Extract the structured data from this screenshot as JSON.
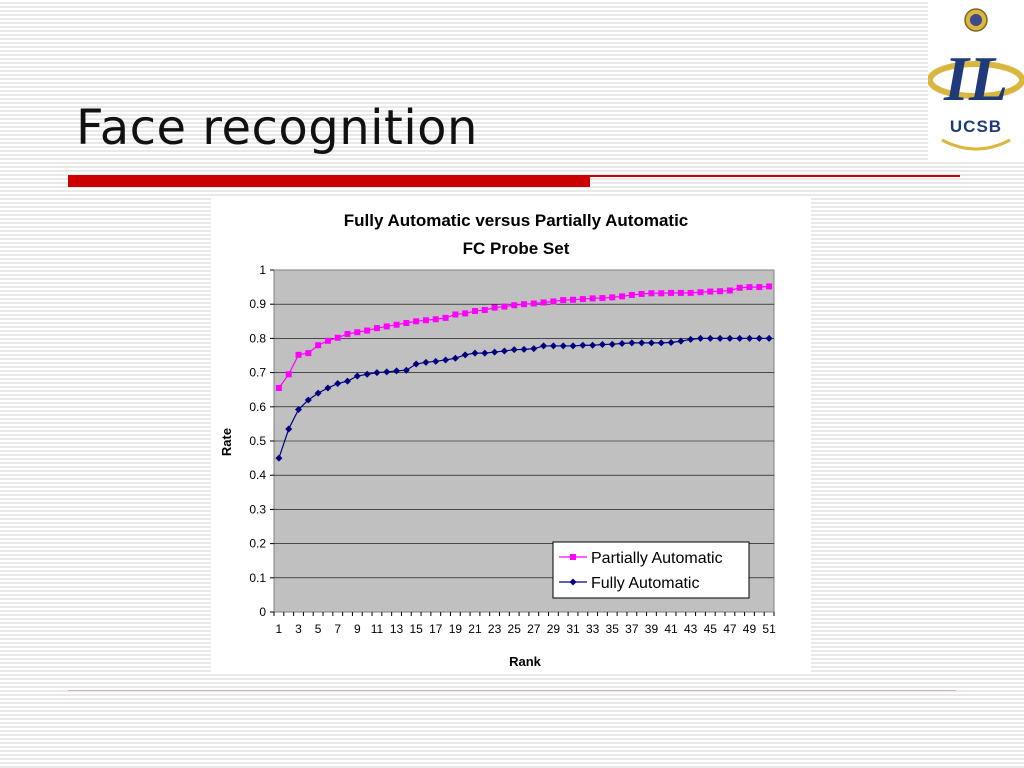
{
  "slide": {
    "title": "Face recognition",
    "logo_text": "UCSB",
    "logo_initials": "IL"
  },
  "colors": {
    "accent_red": "#cc0000",
    "plot_bg": "#c0c0c0",
    "partial": "#ff00ff",
    "fully": "#000080"
  },
  "chart_data": {
    "type": "line",
    "title": "Fully Automatic versus Partially Automatic",
    "subtitle": "FC Probe Set",
    "xlabel": "Rank",
    "ylabel": "Rate",
    "ylim": [
      0,
      1
    ],
    "yticks": [
      "0",
      "0.1",
      "0.2",
      "0.3",
      "0.4",
      "0.5",
      "0.6",
      "0.7",
      "0.8",
      "0.9",
      "1"
    ],
    "x": [
      1,
      2,
      3,
      4,
      5,
      6,
      7,
      8,
      9,
      10,
      11,
      12,
      13,
      14,
      15,
      16,
      17,
      18,
      19,
      20,
      21,
      22,
      23,
      24,
      25,
      26,
      27,
      28,
      29,
      30,
      31,
      32,
      33,
      34,
      35,
      36,
      37,
      38,
      39,
      40,
      41,
      42,
      43,
      44,
      45,
      46,
      47,
      48,
      49,
      50,
      51
    ],
    "xtick_labels": [
      1,
      3,
      5,
      7,
      9,
      11,
      13,
      15,
      17,
      19,
      21,
      23,
      25,
      27,
      29,
      31,
      33,
      35,
      37,
      39,
      41,
      43,
      45,
      47,
      49,
      51
    ],
    "grid": "horizontal",
    "legend_position": "bottom-right",
    "series": [
      {
        "name": "Partially Automatic",
        "color": "#ff00ff",
        "marker": "square",
        "values": [
          0.655,
          0.695,
          0.752,
          0.757,
          0.78,
          0.793,
          0.802,
          0.813,
          0.818,
          0.823,
          0.83,
          0.835,
          0.84,
          0.845,
          0.85,
          0.853,
          0.856,
          0.86,
          0.87,
          0.873,
          0.88,
          0.883,
          0.89,
          0.893,
          0.897,
          0.9,
          0.902,
          0.905,
          0.908,
          0.912,
          0.913,
          0.915,
          0.917,
          0.918,
          0.92,
          0.923,
          0.927,
          0.93,
          0.932,
          0.932,
          0.933,
          0.933,
          0.933,
          0.935,
          0.937,
          0.938,
          0.94,
          0.948,
          0.95,
          0.95,
          0.952
        ]
      },
      {
        "name": "Fully Automatic",
        "color": "#000080",
        "marker": "diamond",
        "values": [
          0.45,
          0.535,
          0.592,
          0.62,
          0.64,
          0.655,
          0.668,
          0.675,
          0.69,
          0.695,
          0.7,
          0.702,
          0.705,
          0.707,
          0.725,
          0.73,
          0.733,
          0.737,
          0.742,
          0.752,
          0.757,
          0.757,
          0.76,
          0.763,
          0.767,
          0.768,
          0.77,
          0.778,
          0.778,
          0.778,
          0.778,
          0.78,
          0.78,
          0.782,
          0.783,
          0.785,
          0.787,
          0.787,
          0.787,
          0.787,
          0.788,
          0.792,
          0.797,
          0.8,
          0.8,
          0.8,
          0.8,
          0.8,
          0.8,
          0.8,
          0.8
        ]
      }
    ]
  }
}
